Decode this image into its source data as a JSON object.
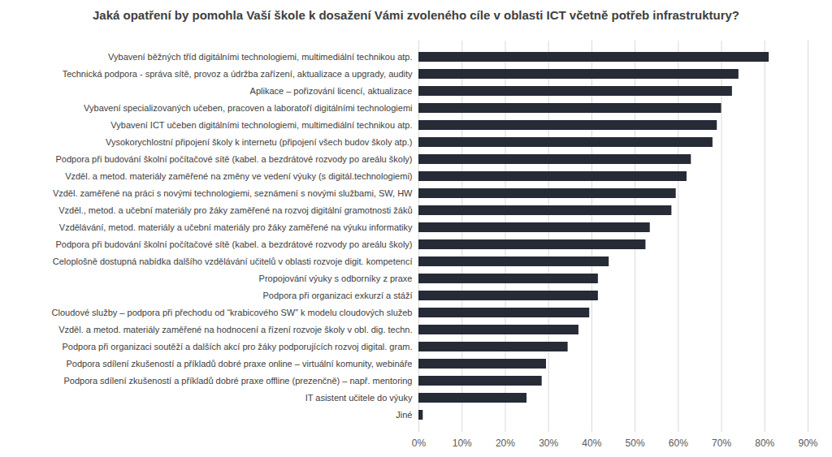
{
  "chart_data": {
    "type": "bar",
    "orientation": "horizontal",
    "title": "Jaká opatření by pomohla Vaší škole k dosažení Vámi zvoleného cíle v oblasti ICT včetně potřeb infrastruktury?",
    "categories": [
      "Vybavení běžných tříd digitálními technologiemi, multimediální technikou atp.",
      "Technická podpora - správa sítě, provoz a údržba zařízení, aktualizace a upgrady, audity",
      "Aplikace – pořizování licencí, aktualizace",
      "Vybavení specializovaných učeben, pracoven a laboratoří digitálními technologiemi",
      "Vybavení ICT učeben digitálními technologiemi, multimediální technikou atp.",
      "Vysokorychlostní připojení školy k internetu (připojení všech budov školy atp.)",
      "Podpora při budování školní počítačové sítě (kabel. a bezdrátové rozvody po areálu školy)",
      "Vzděl. a metod. materiály zaměřené na změny ve vedení výuky (s digitál.technologiemi)",
      "Vzděl. zaměřené na práci s novými technologiemi, seznámení s novými službami, SW, HW",
      "Vzděl., metod. a učební materiály pro žáky zaměřené na rozvoj digitální gramotnosti žáků",
      "Vzdělávání, metod. materiály a učební materiály pro žáky zaměřené na výuku informatiky",
      "Podpora při budování školní počítačové sítě (kabel. a bezdrátové rozvody po areálu školy)",
      "Celoplošně dostupná nabídka dalšího vzdělávání učitelů v oblasti rozvoje digit. kompetencí",
      "Propojování výuky s odborníky z praxe",
      "Podpora při organizaci exkurzí a stáží",
      "Cloudové služby – podpora při přechodu od “krabicového SW” k modelu cloudových služeb",
      "Vzděl. a metod. materiály zaměřené na hodnocení a řízení rozvoje školy v obl. dig. techn.",
      "Podpora při organizaci soutěží a dalších akcí pro žáky podporujících rozvoj digital. gram.",
      "Podpora sdílení zkušeností a příkladů dobré praxe online – virtuální komunity, webináře",
      "Podpora sdílení zkušeností a příkladů dobré praxe offline (prezenčně) – např. mentoring",
      "IT asistent učitele do výuky",
      "Jiné"
    ],
    "values": [
      81,
      74,
      72.5,
      70,
      69,
      68,
      63,
      62,
      59.5,
      58.5,
      53.5,
      52.5,
      44,
      41.5,
      41.5,
      39.5,
      37,
      34.5,
      29.5,
      28.5,
      25,
      1
    ],
    "color": "#262b36",
    "xlim": [
      0,
      90
    ],
    "xticks": [
      {
        "value": 0,
        "label": "0%"
      },
      {
        "value": 10,
        "label": "10%"
      },
      {
        "value": 20,
        "label": "20%"
      },
      {
        "value": 30,
        "label": "30%"
      },
      {
        "value": 40,
        "label": "40%"
      },
      {
        "value": 50,
        "label": "50%"
      },
      {
        "value": 60,
        "label": "60%"
      },
      {
        "value": 70,
        "label": "70%"
      },
      {
        "value": 80,
        "label": "80%"
      },
      {
        "value": 90,
        "label": "90%"
      }
    ],
    "grid": true
  }
}
